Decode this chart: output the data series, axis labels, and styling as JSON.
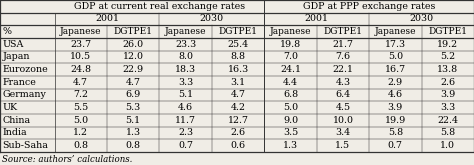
{
  "col_header_row1_left": "GDP at current real exchange rates",
  "col_header_row1_right": "GDP at PPP exchange rates",
  "col_header_row2": [
    "2001",
    "2030",
    "2001",
    "2030"
  ],
  "col_header_row3": [
    "%",
    "Japanese",
    "DGTPE1",
    "Japanese",
    "DGTPE1",
    "Japanese",
    "DGTPE1",
    "Japanese",
    "DGTPE1"
  ],
  "rows": [
    [
      "USA",
      "23.7",
      "26.0",
      "23.3",
      "25.4",
      "19.8",
      "21.7",
      "17.3",
      "19.2"
    ],
    [
      "Japan",
      "10.5",
      "12.0",
      "8.0",
      "8.8",
      "7.0",
      "7.6",
      "5.0",
      "5.2"
    ],
    [
      "Eurozone",
      "24.8",
      "22.9",
      "18.3",
      "16.3",
      "24.1",
      "22.1",
      "16.7",
      "13.8"
    ],
    [
      "France",
      "4.7",
      "4.7",
      "3.3",
      "3.1",
      "4.4",
      "4.3",
      "2.9",
      "2.6"
    ],
    [
      "Germany",
      "7.2",
      "6.9",
      "5.1",
      "4.7",
      "6.8",
      "6.4",
      "4.6",
      "3.9"
    ],
    [
      "UK",
      "5.5",
      "5.3",
      "4.6",
      "4.2",
      "5.0",
      "4.5",
      "3.9",
      "3.3"
    ],
    [
      "China",
      "5.0",
      "5.1",
      "11.7",
      "12.7",
      "9.0",
      "10.0",
      "19.9",
      "22.4"
    ],
    [
      "India",
      "1.2",
      "1.3",
      "2.3",
      "2.6",
      "3.5",
      "3.4",
      "5.8",
      "5.8"
    ],
    [
      "Sub-Saha",
      "0.8",
      "0.8",
      "0.7",
      "0.6",
      "1.3",
      "1.5",
      "0.7",
      "1.0"
    ]
  ],
  "footer": "Source: authors’ calculations.",
  "bg_color": "#f0ede6",
  "text_color": "#000000",
  "font_size": 6.8,
  "header_font_size": 6.8
}
